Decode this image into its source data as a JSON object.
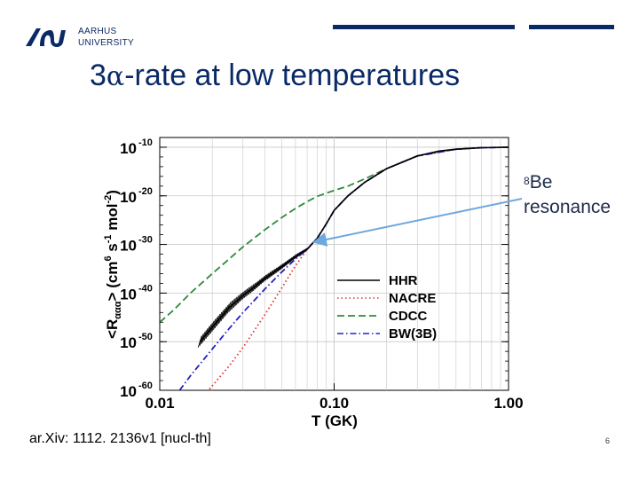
{
  "header": {
    "university_line1": "AARHUS",
    "university_line2": "UNIVERSITY",
    "brand_color": "#0a2a66"
  },
  "slide": {
    "title_prefix": "3",
    "title_alpha": "α",
    "title_suffix": "-rate at low temperatures",
    "footer_reference": "ar.Xiv: 1112. 2136v1 [nucl-th]",
    "page_number": "6"
  },
  "annotation": {
    "superscript": "8",
    "element": "Be",
    "label": "resonance",
    "points_to": {
      "T_GK": 0.075,
      "log_rate": -29.8
    }
  },
  "chart_data": {
    "type": "line",
    "xscale": "log",
    "xlim": [
      0.01,
      1.0
    ],
    "ylim": [
      -60,
      -8
    ],
    "xlabel": "T (GK)",
    "ylabel": "<Rααα> (cm⁶ s⁻¹ mol⁻²)",
    "ylabel_parts": {
      "lt": "<R",
      "sub": "ααα",
      "gt": "> (cm",
      "p1": "6",
      "s": " s",
      "p2": "-1",
      "mol": " mol",
      "p3": "-2",
      "close": ")"
    },
    "xticks": [
      0.01,
      0.1,
      1.0
    ],
    "xtick_labels": [
      "0.01",
      "0.10",
      "1.00"
    ],
    "yticks": [
      -60,
      -50,
      -40,
      -30,
      -20,
      -10
    ],
    "ytick_base": "10",
    "ytick_exponents": [
      "-60",
      "-50",
      "-40",
      "-30",
      "-20",
      "-10"
    ],
    "legend_position": "lower-right",
    "series": [
      {
        "name": "HHR",
        "style": "solid",
        "color": "#000000",
        "x": [
          0.017,
          0.02,
          0.025,
          0.03,
          0.035,
          0.04,
          0.05,
          0.06,
          0.07,
          0.075,
          0.08,
          0.09,
          0.1,
          0.12,
          0.15,
          0.2,
          0.3,
          0.4,
          0.5,
          0.7,
          1.0
        ],
        "y": [
          -50.0,
          -47.0,
          -43.0,
          -40.5,
          -38.7,
          -37.0,
          -34.6,
          -32.5,
          -31.0,
          -29.8,
          -28.7,
          -25.8,
          -23.0,
          -20.0,
          -17.2,
          -14.4,
          -11.8,
          -10.8,
          -10.4,
          -10.1,
          -10.0
        ],
        "band_x": [
          0.017,
          0.02,
          0.025,
          0.03,
          0.035,
          0.04,
          0.05,
          0.06,
          0.07
        ],
        "band_lo": [
          -51.2,
          -48.3,
          -44.2,
          -41.5,
          -39.6,
          -37.8,
          -35.3,
          -33.1,
          -31.5
        ],
        "band_hi": [
          -48.8,
          -45.7,
          -41.8,
          -39.5,
          -37.8,
          -36.2,
          -33.9,
          -31.9,
          -30.5
        ]
      },
      {
        "name": "NACRE",
        "style": "dotted",
        "color": "#e03030",
        "x": [
          0.018,
          0.025,
          0.03,
          0.04,
          0.05,
          0.06,
          0.07,
          0.075,
          0.08,
          0.09,
          0.1,
          0.12,
          0.15,
          0.2,
          0.3,
          0.5,
          0.7,
          1.0
        ],
        "y": [
          -61.0,
          -55.0,
          -51.2,
          -44.5,
          -39.0,
          -34.4,
          -31.0,
          -29.8,
          -28.7,
          -25.8,
          -23.0,
          -20.0,
          -17.2,
          -14.4,
          -11.8,
          -10.4,
          -10.1,
          -10.0
        ]
      },
      {
        "name": "CDCC",
        "style": "dashed",
        "color": "#2e8b3a",
        "x": [
          0.01,
          0.012,
          0.015,
          0.02,
          0.025,
          0.03,
          0.04,
          0.05,
          0.06,
          0.07,
          0.08,
          0.1,
          0.12,
          0.15,
          0.2,
          0.3,
          0.5,
          0.7,
          1.0
        ],
        "y": [
          -46.0,
          -43.5,
          -40.0,
          -36.0,
          -33.0,
          -30.5,
          -27.0,
          -24.5,
          -22.6,
          -21.2,
          -20.1,
          -18.9,
          -18.0,
          -16.5,
          -14.4,
          -11.8,
          -10.4,
          -10.1,
          -10.0
        ]
      },
      {
        "name": "BW(3B)",
        "style": "dashdot",
        "color": "#2020c8",
        "x": [
          0.013,
          0.015,
          0.02,
          0.025,
          0.03,
          0.04,
          0.05,
          0.06,
          0.07,
          0.075,
          0.08,
          0.09,
          0.1,
          0.12,
          0.15,
          0.2,
          0.3,
          0.5,
          0.7,
          1.0
        ],
        "y": [
          -60.0,
          -57.0,
          -51.5,
          -47.3,
          -44.0,
          -39.2,
          -35.7,
          -33.0,
          -31.0,
          -29.8,
          -28.7,
          -25.8,
          -23.0,
          -20.0,
          -17.2,
          -14.4,
          -11.8,
          -10.4,
          -10.1,
          -10.0
        ]
      }
    ]
  }
}
